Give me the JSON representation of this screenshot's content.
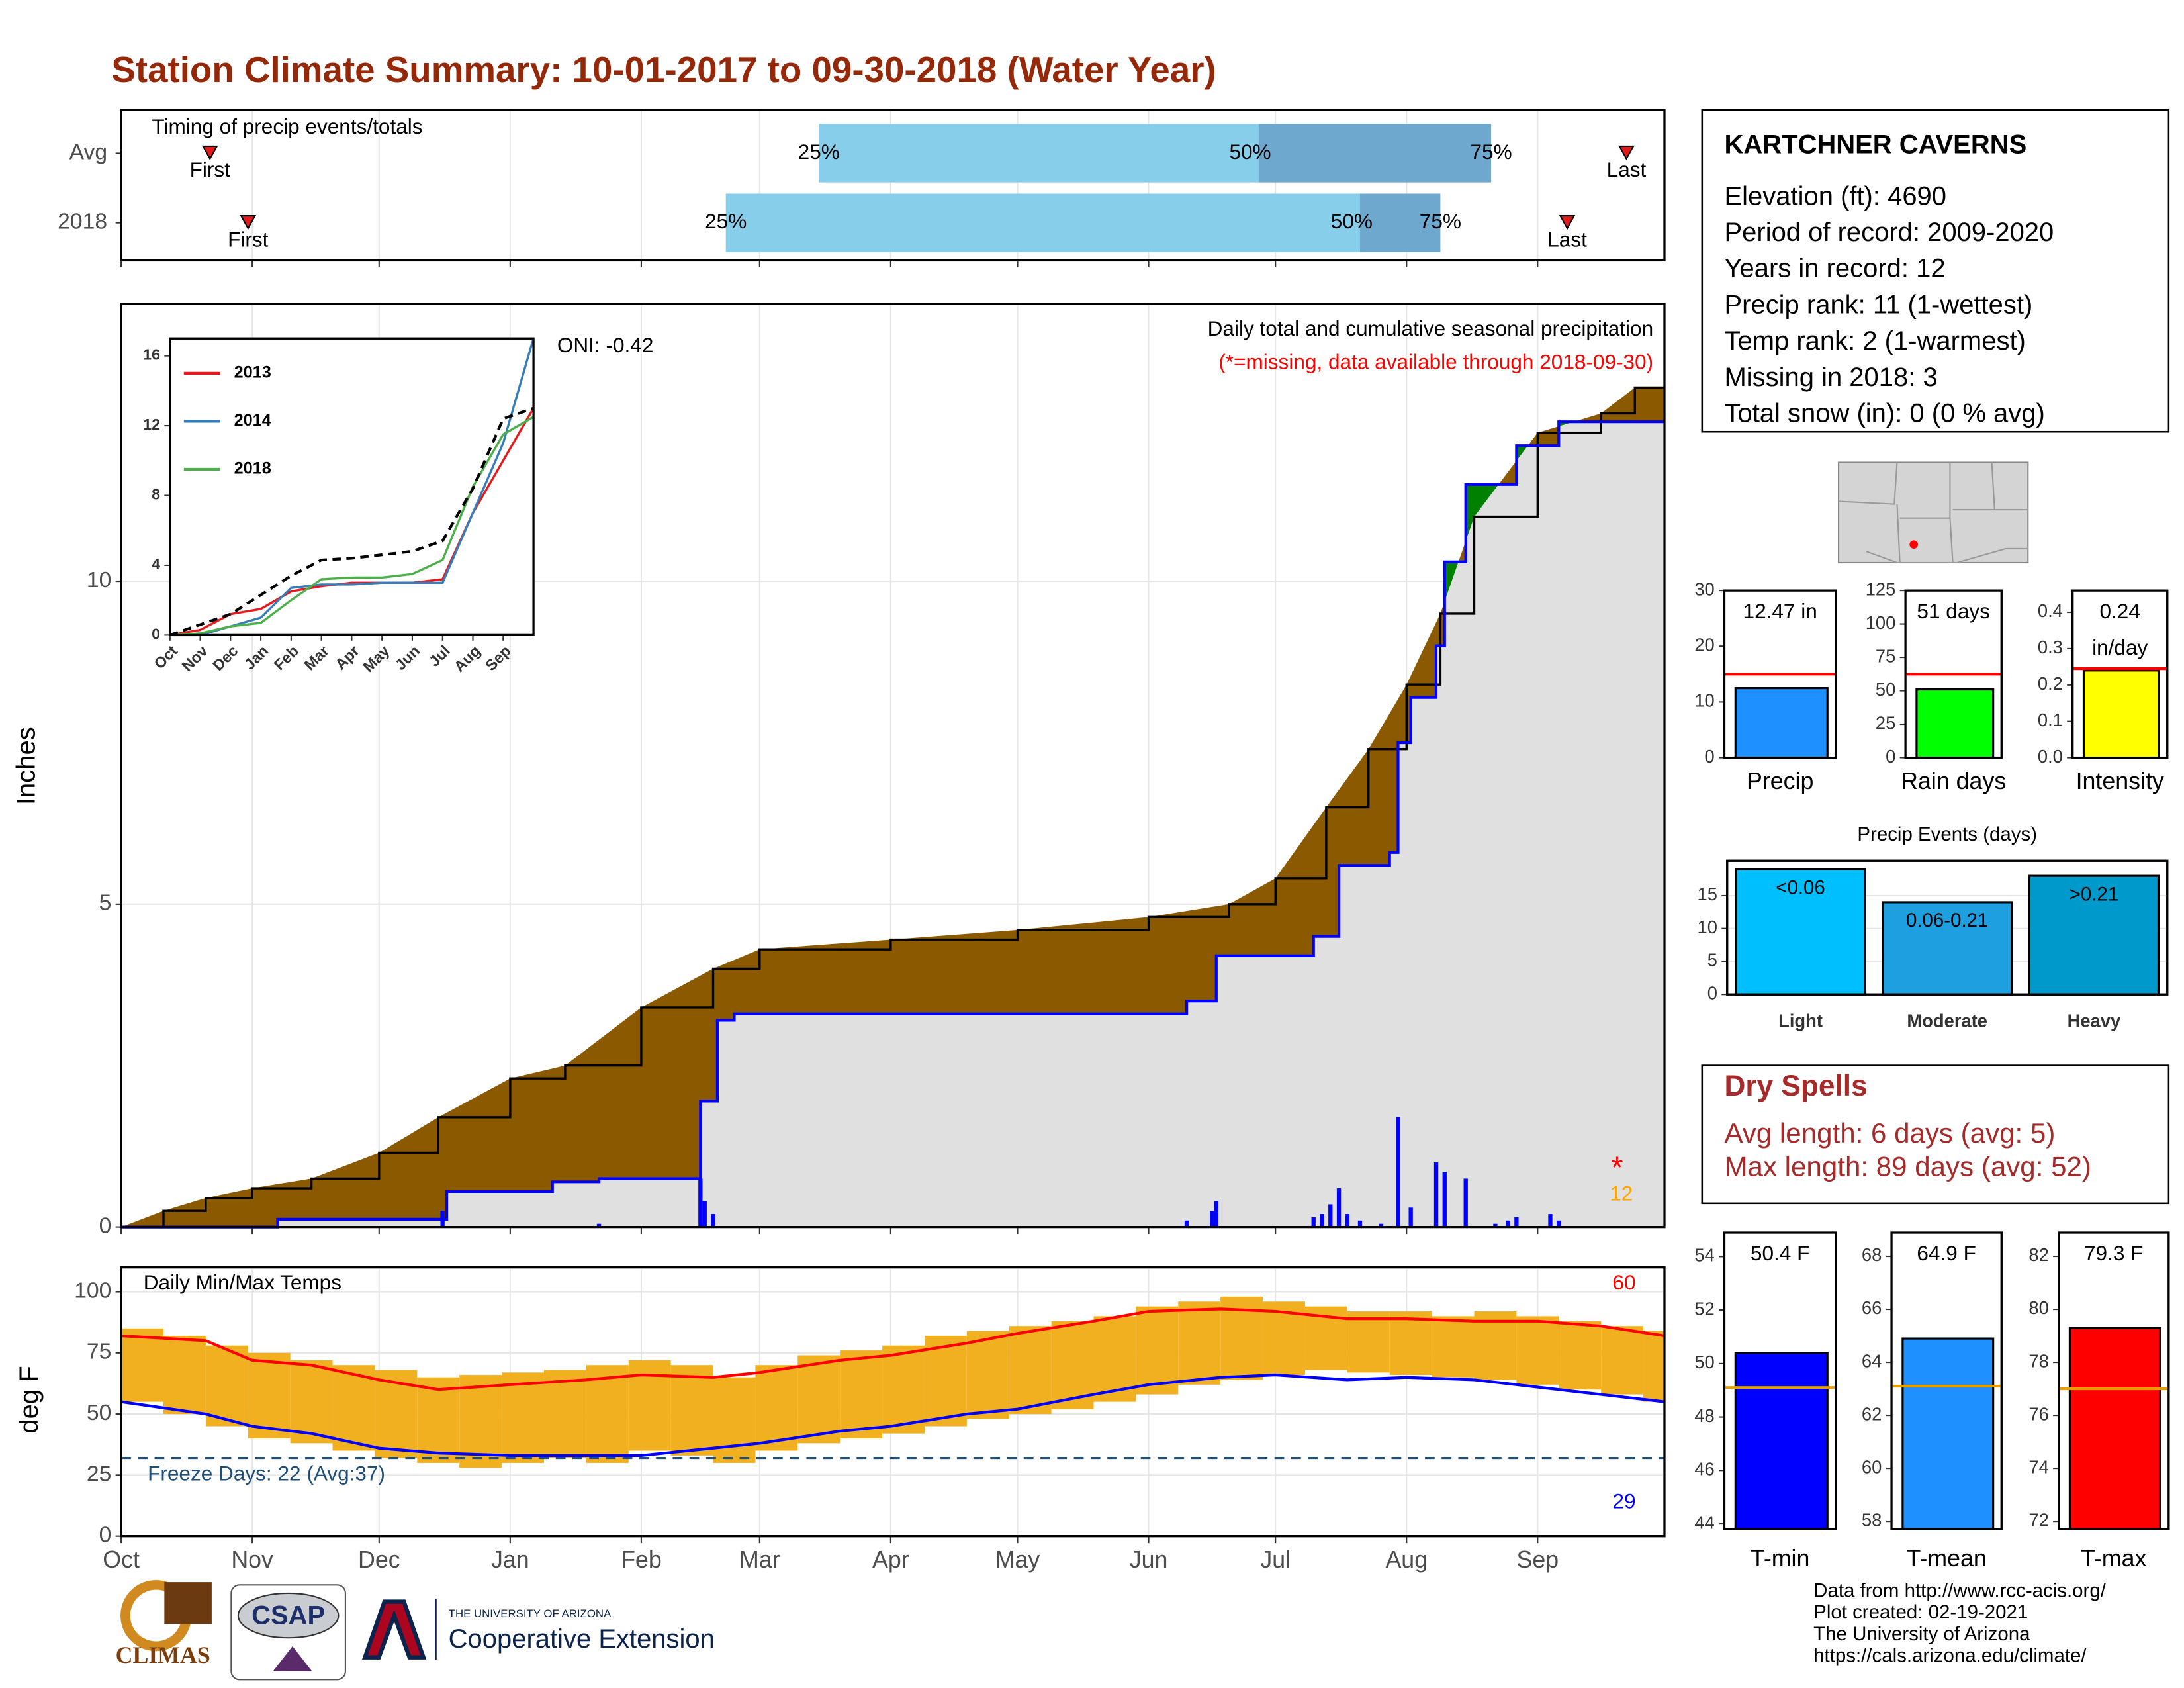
{
  "title": "Station Climate Summary: 10-01-2017 to 09-30-2018 (Water Year)",
  "station": {
    "name": "KARTCHNER CAVERNS",
    "lines": [
      "Elevation (ft): 4690",
      "Period of record: 2009-2020",
      "Years in record: 12",
      "Precip rank: 11 (1-wettest)",
      "Temp rank: 2 (1-warmest)",
      "Missing in 2018: 3",
      "Total snow (in): 0 (0 % avg)"
    ]
  },
  "dry_spells": {
    "title": "Dry Spells",
    "lines": [
      "Avg length: 6 days (avg: 5)",
      "Max length: 89 days (avg: 52)"
    ]
  },
  "footer": {
    "notes": [
      "Data from http://www.rcc-acis.org/",
      "Plot created: 02-19-2021",
      "The University of Arizona",
      "https://cals.arizona.edu/climate/"
    ],
    "logos": [
      "CLIMAS",
      "CSAP",
      "THE UNIVERSITY OF ARIZONA",
      "Cooperative Extension"
    ]
  },
  "chart_data": [
    {
      "type": "timing",
      "title": "Timing of precip events/totals",
      "xlim": [
        0,
        365
      ],
      "rows": [
        {
          "name": "Avg",
          "first": 21,
          "q25": 165,
          "q50": 269,
          "q75": 324,
          "last": 356
        },
        {
          "name": "2018",
          "first": 30,
          "q25": 143,
          "q50": 293,
          "q75": 312,
          "last": 342
        }
      ],
      "marker_labels": {
        "first": "First",
        "last": "Last",
        "q25": "25%",
        "q50": "50%",
        "q75": "75%"
      },
      "colors": {
        "low": "#87ceeb",
        "high": "#6fa8cf",
        "marker": "#e31a1c"
      },
      "grid": true
    },
    {
      "type": "area",
      "title": "Daily total and cumulative seasonal precipitation",
      "subtitle": "(*=missing, data available through 2018-09-30)",
      "annotation": "ONI: -0.42",
      "ylabel": "Inches",
      "missing_symbol": "*",
      "missing_count": 12,
      "xlim": [
        0,
        365
      ],
      "ylim": [
        0,
        14.3
      ],
      "yticks": [
        0,
        5,
        10
      ],
      "grid": true,
      "series": [
        {
          "color": "#0000ff",
          "fill": "#e0e0e0",
          "above_fill": "#008000",
          "step": true,
          "x": [
            0,
            37,
            77,
            102,
            113,
            137,
            141,
            145,
            252,
            259,
            282,
            288,
            300,
            302,
            305,
            311,
            313,
            318,
            330,
            340,
            365
          ],
          "values": [
            0,
            0.12,
            0.55,
            0.7,
            0.75,
            1.95,
            3.2,
            3.3,
            3.5,
            4.2,
            4.5,
            5.6,
            5.8,
            7.5,
            8.2,
            9.0,
            10.3,
            11.5,
            12.1,
            12.47,
            12.47
          ]
        },
        {
          "color": "#000000",
          "fill": "#8b5a00",
          "x": [
            0,
            10,
            20,
            31,
            45,
            61,
            75,
            92,
            105,
            123,
            140,
            151,
            182,
            212,
            243,
            262,
            273,
            285,
            295,
            304,
            312,
            320,
            335,
            350,
            358,
            365
          ],
          "values": [
            0,
            0.25,
            0.45,
            0.6,
            0.75,
            1.15,
            1.7,
            2.3,
            2.5,
            3.4,
            4.0,
            4.3,
            4.45,
            4.6,
            4.8,
            5.0,
            5.4,
            6.5,
            7.4,
            8.4,
            9.5,
            11.0,
            12.3,
            12.6,
            13.0,
            13.0
          ]
        }
      ],
      "daily": {
        "color": "#0000ff",
        "x": [
          76,
          113,
          137,
          138,
          140,
          252,
          258,
          259,
          282,
          284,
          286,
          288,
          290,
          293,
          298,
          302,
          305,
          311,
          313,
          318,
          325,
          328,
          330,
          338,
          340
        ],
        "values": [
          0.25,
          0.05,
          0.75,
          0.4,
          0.2,
          0.1,
          0.25,
          0.4,
          0.15,
          0.2,
          0.35,
          0.6,
          0.2,
          0.1,
          0.05,
          1.7,
          0.3,
          1.0,
          0.85,
          0.75,
          0.05,
          0.1,
          0.15,
          0.2,
          0.1
        ]
      }
    },
    {
      "type": "line",
      "xlim": [
        0,
        12
      ],
      "x": [
        0,
        1,
        2,
        3,
        4,
        5,
        6,
        7,
        8,
        9,
        10,
        11,
        12
      ],
      "xticks": [
        {
          "value": 0,
          "label": "Oct"
        },
        {
          "value": 1,
          "label": "Nov"
        },
        {
          "value": 2,
          "label": "Dec"
        },
        {
          "value": 3,
          "label": "Jan"
        },
        {
          "value": 4,
          "label": "Feb"
        },
        {
          "value": 5,
          "label": "Mar"
        },
        {
          "value": 6,
          "label": "Apr"
        },
        {
          "value": 7,
          "label": "May"
        },
        {
          "value": 8,
          "label": "Jun"
        },
        {
          "value": 9,
          "label": "Jul"
        },
        {
          "value": 10,
          "label": "Aug"
        },
        {
          "value": 11,
          "label": "Sep"
        }
      ],
      "ylim": [
        0,
        17
      ],
      "yticks": [
        0,
        4,
        8,
        12,
        16
      ],
      "legend": "top-left",
      "series": [
        {
          "name": "2013",
          "color": "#e41a1c",
          "values": [
            0,
            0.3,
            1.2,
            1.5,
            2.5,
            2.8,
            3.0,
            3.0,
            3.0,
            3.2,
            7,
            10,
            13
          ]
        },
        {
          "name": "2014",
          "color": "#377eb8",
          "values": [
            0,
            0,
            0.5,
            1.0,
            2.7,
            2.9,
            2.9,
            3.0,
            3.0,
            3.0,
            7,
            11,
            17
          ]
        },
        {
          "name": "2018",
          "color": "#4daf4a",
          "values": [
            0,
            0.1,
            0.5,
            0.7,
            2.0,
            3.2,
            3.3,
            3.3,
            3.5,
            4.3,
            8.5,
            11.5,
            12.5
          ]
        }
      ],
      "reference": {
        "color": "#000000",
        "dash": true,
        "values": [
          0,
          0.6,
          1.2,
          2.3,
          3.4,
          4.3,
          4.4,
          4.6,
          4.8,
          5.4,
          8.4,
          12.4,
          13.0
        ]
      }
    },
    {
      "type": "range",
      "title": "Daily Min/Max Temps",
      "ylabel": "deg F",
      "xlim": [
        0,
        365
      ],
      "xticks": [
        {
          "value": 0,
          "label": "Oct"
        },
        {
          "value": 31,
          "label": "Nov"
        },
        {
          "value": 61,
          "label": "Dec"
        },
        {
          "value": 92,
          "label": "Jan"
        },
        {
          "value": 123,
          "label": "Feb"
        },
        {
          "value": 151,
          "label": "Mar"
        },
        {
          "value": 182,
          "label": "Apr"
        },
        {
          "value": 212,
          "label": "May"
        },
        {
          "value": 243,
          "label": "Jun"
        },
        {
          "value": 273,
          "label": "Jul"
        },
        {
          "value": 304,
          "label": "Aug"
        },
        {
          "value": 335,
          "label": "Sep"
        }
      ],
      "ylim": [
        0,
        110
      ],
      "yticks": [
        0,
        25,
        50,
        75,
        100
      ],
      "grid": true,
      "bars": {
        "color": "#f0b020",
        "width": 10,
        "x": [
          0,
          10,
          20,
          30,
          40,
          50,
          60,
          70,
          80,
          90,
          100,
          110,
          120,
          130,
          140,
          150,
          160,
          170,
          180,
          190,
          200,
          210,
          220,
          230,
          240,
          250,
          260,
          270,
          280,
          290,
          300,
          310,
          320,
          330,
          340,
          350,
          360
        ],
        "min": [
          55,
          50,
          45,
          40,
          38,
          35,
          32,
          30,
          28,
          30,
          32,
          30,
          35,
          33,
          30,
          35,
          38,
          40,
          42,
          45,
          48,
          50,
          52,
          55,
          58,
          62,
          64,
          66,
          68,
          67,
          66,
          65,
          64,
          62,
          60,
          58,
          55
        ],
        "max": [
          85,
          82,
          78,
          75,
          72,
          70,
          68,
          65,
          66,
          67,
          68,
          70,
          72,
          70,
          65,
          70,
          74,
          76,
          78,
          82,
          84,
          86,
          88,
          90,
          94,
          96,
          98,
          96,
          94,
          92,
          92,
          90,
          92,
          90,
          88,
          86,
          84
        ]
      },
      "series": [
        {
          "color": "#ff0000",
          "x": [
            0,
            20,
            31,
            45,
            61,
            75,
            92,
            110,
            123,
            140,
            151,
            170,
            182,
            200,
            212,
            230,
            243,
            260,
            273,
            290,
            304,
            320,
            335,
            350,
            365
          ],
          "values": [
            82,
            80,
            72,
            70,
            64,
            60,
            62,
            64,
            66,
            65,
            67,
            72,
            74,
            79,
            83,
            88,
            92,
            93,
            92,
            89,
            89,
            88,
            88,
            86,
            82
          ]
        },
        {
          "color": "#0000ff",
          "x": [
            0,
            20,
            31,
            45,
            61,
            75,
            92,
            110,
            123,
            140,
            151,
            170,
            182,
            200,
            212,
            230,
            243,
            260,
            273,
            290,
            304,
            320,
            335,
            350,
            365
          ],
          "values": [
            55,
            50,
            45,
            42,
            36,
            34,
            33,
            33,
            33,
            36,
            38,
            43,
            45,
            50,
            52,
            58,
            62,
            65,
            66,
            64,
            65,
            64,
            61,
            58,
            55
          ]
        }
      ],
      "freeze": {
        "value": 32,
        "color": "#1f4e79",
        "label": "Freeze Days: 22 (Avg:37)"
      },
      "max_count": 60,
      "max_color": "#ff0000",
      "min_count": 29,
      "min_color": "#0000ff"
    },
    {
      "type": "gauge",
      "category": "Precip",
      "value": 12.47,
      "value_label": "12.47 in",
      "avg": 15,
      "color": "#1e90ff",
      "avg_color": "#ff0000",
      "ylim": [
        0,
        30
      ],
      "yticks": [
        0,
        10,
        20,
        30
      ]
    },
    {
      "type": "gauge",
      "category": "Rain days",
      "value": 51,
      "value_label": "51 days",
      "avg": 62.5,
      "color": "#00ff00",
      "avg_color": "#ff0000",
      "ylim": [
        0,
        125
      ],
      "yticks": [
        0,
        25,
        50,
        75,
        100,
        125
      ]
    },
    {
      "type": "gauge",
      "category": "Intensity",
      "value": 0.24,
      "value_label": "0.24",
      "unit_label": "in/day",
      "avg": 0.245,
      "color": "#ffff00",
      "avg_color": "#ff0000",
      "ylim": [
        0,
        0.46
      ],
      "yticks": [
        {
          "value": 0,
          "label": "0.0"
        },
        0.1,
        0.2,
        0.3,
        0.4
      ]
    },
    {
      "type": "bar",
      "title": "Precip Events (days)",
      "categories": [
        "Light",
        "Moderate",
        "Heavy"
      ],
      "values": [
        19,
        14,
        18
      ],
      "bar_labels": [
        "<0.06",
        "0.06-0.21",
        ">0.21"
      ],
      "colors": [
        "#00bfff",
        "#1e9fe0",
        "#0099cc"
      ],
      "ylim": [
        0,
        20.3
      ],
      "yticks": [
        0,
        5,
        10,
        15
      ],
      "grid": true
    },
    {
      "type": "gauge",
      "category": "T-min",
      "value": 50.4,
      "value_label": "50.4 F",
      "avg": 49.1,
      "color": "#0000ff",
      "avg_color": "#e69f00",
      "ylim": [
        43.8,
        54.9
      ],
      "yticks": [
        44,
        46,
        48,
        50,
        52,
        54
      ]
    },
    {
      "type": "gauge",
      "category": "T-mean",
      "value": 64.9,
      "value_label": "64.9 F",
      "avg": 63.1,
      "color": "#1e90ff",
      "avg_color": "#e69f00",
      "ylim": [
        57.7,
        68.9
      ],
      "yticks": [
        58,
        60,
        62,
        64,
        66,
        68
      ]
    },
    {
      "type": "gauge",
      "category": "T-max",
      "value": 79.3,
      "value_label": "79.3 F",
      "avg": 77.0,
      "color": "#ff0000",
      "avg_color": "#e69f00",
      "ylim": [
        71.7,
        82.9
      ],
      "yticks": [
        72,
        74,
        76,
        78,
        80,
        82
      ]
    }
  ]
}
